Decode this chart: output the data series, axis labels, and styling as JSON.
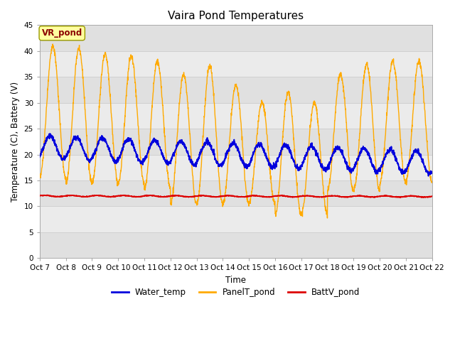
{
  "title": "Vaira Pond Temperatures",
  "ylabel": "Temperature (C), Battery (V)",
  "xlabel": "Time",
  "site_label": "VR_pond",
  "ylim": [
    0,
    45
  ],
  "yticks": [
    0,
    5,
    10,
    15,
    20,
    25,
    30,
    35,
    40,
    45
  ],
  "x_tick_labels": [
    "Oct 7",
    "Oct 8",
    "Oct 9",
    "Oct 10",
    "Oct 11",
    "Oct 12",
    "Oct 13",
    "Oct 14",
    "Oct 15",
    "Oct 16",
    "Oct 17",
    "Oct 18",
    "Oct 19",
    "Oct 20",
    "Oct 21",
    "Oct 22"
  ],
  "water_temp_color": "#0000dd",
  "panel_temp_color": "#ffaa00",
  "batt_v_color": "#dd0000",
  "legend_labels": [
    "Water_temp",
    "PanelT_pond",
    "BattV_pond"
  ],
  "fig_bg_color": "#ffffff",
  "plot_bg_color": "#f0f0f0",
  "band_colors": [
    "#e8e8e8",
    "#f0f0f0"
  ],
  "grid_line_color": "#d0d0d0",
  "title_fontsize": 11,
  "axis_fontsize": 7.5,
  "label_fontsize": 8.5,
  "tick_label_fontsize": 7.5
}
